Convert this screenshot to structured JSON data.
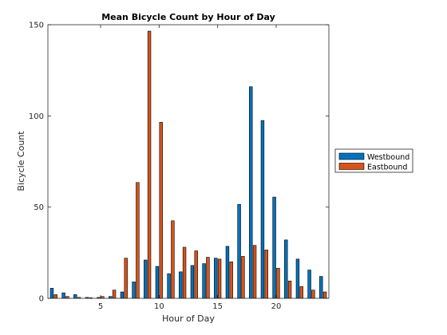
{
  "chart_data": {
    "type": "bar",
    "title": "Mean Bicycle Count by Hour of Day",
    "xlabel": "Hour of Day",
    "ylabel": "Bicycle Count",
    "xlim": [
      0.5,
      24.5
    ],
    "ylim": [
      0,
      150
    ],
    "xticks": [
      5,
      10,
      15,
      20
    ],
    "yticks": [
      0,
      50,
      100,
      150
    ],
    "grid": false,
    "legend_position": "east-outside",
    "categories": [
      1,
      2,
      3,
      4,
      5,
      6,
      7,
      8,
      9,
      10,
      11,
      12,
      13,
      14,
      15,
      16,
      17,
      18,
      19,
      20,
      21,
      22,
      23,
      24
    ],
    "series": [
      {
        "name": "Westbound",
        "color": "#0072BD",
        "values": [
          5.5,
          3.0,
          2.0,
          0.5,
          0.5,
          1.0,
          3.5,
          9.0,
          21.0,
          17.5,
          13.5,
          14.5,
          18.0,
          19.0,
          22.0,
          28.5,
          51.5,
          116.0,
          97.5,
          55.5,
          32.0,
          21.5,
          15.5,
          12.0
        ]
      },
      {
        "name": "Eastbound",
        "color": "#D95319",
        "values": [
          2.0,
          1.0,
          0.5,
          0.3,
          1.0,
          4.5,
          22.0,
          63.5,
          146.5,
          96.5,
          42.5,
          28.0,
          26.0,
          22.5,
          21.5,
          20.0,
          23.0,
          29.0,
          26.5,
          16.5,
          9.5,
          6.5,
          4.5,
          3.5
        ]
      }
    ]
  }
}
